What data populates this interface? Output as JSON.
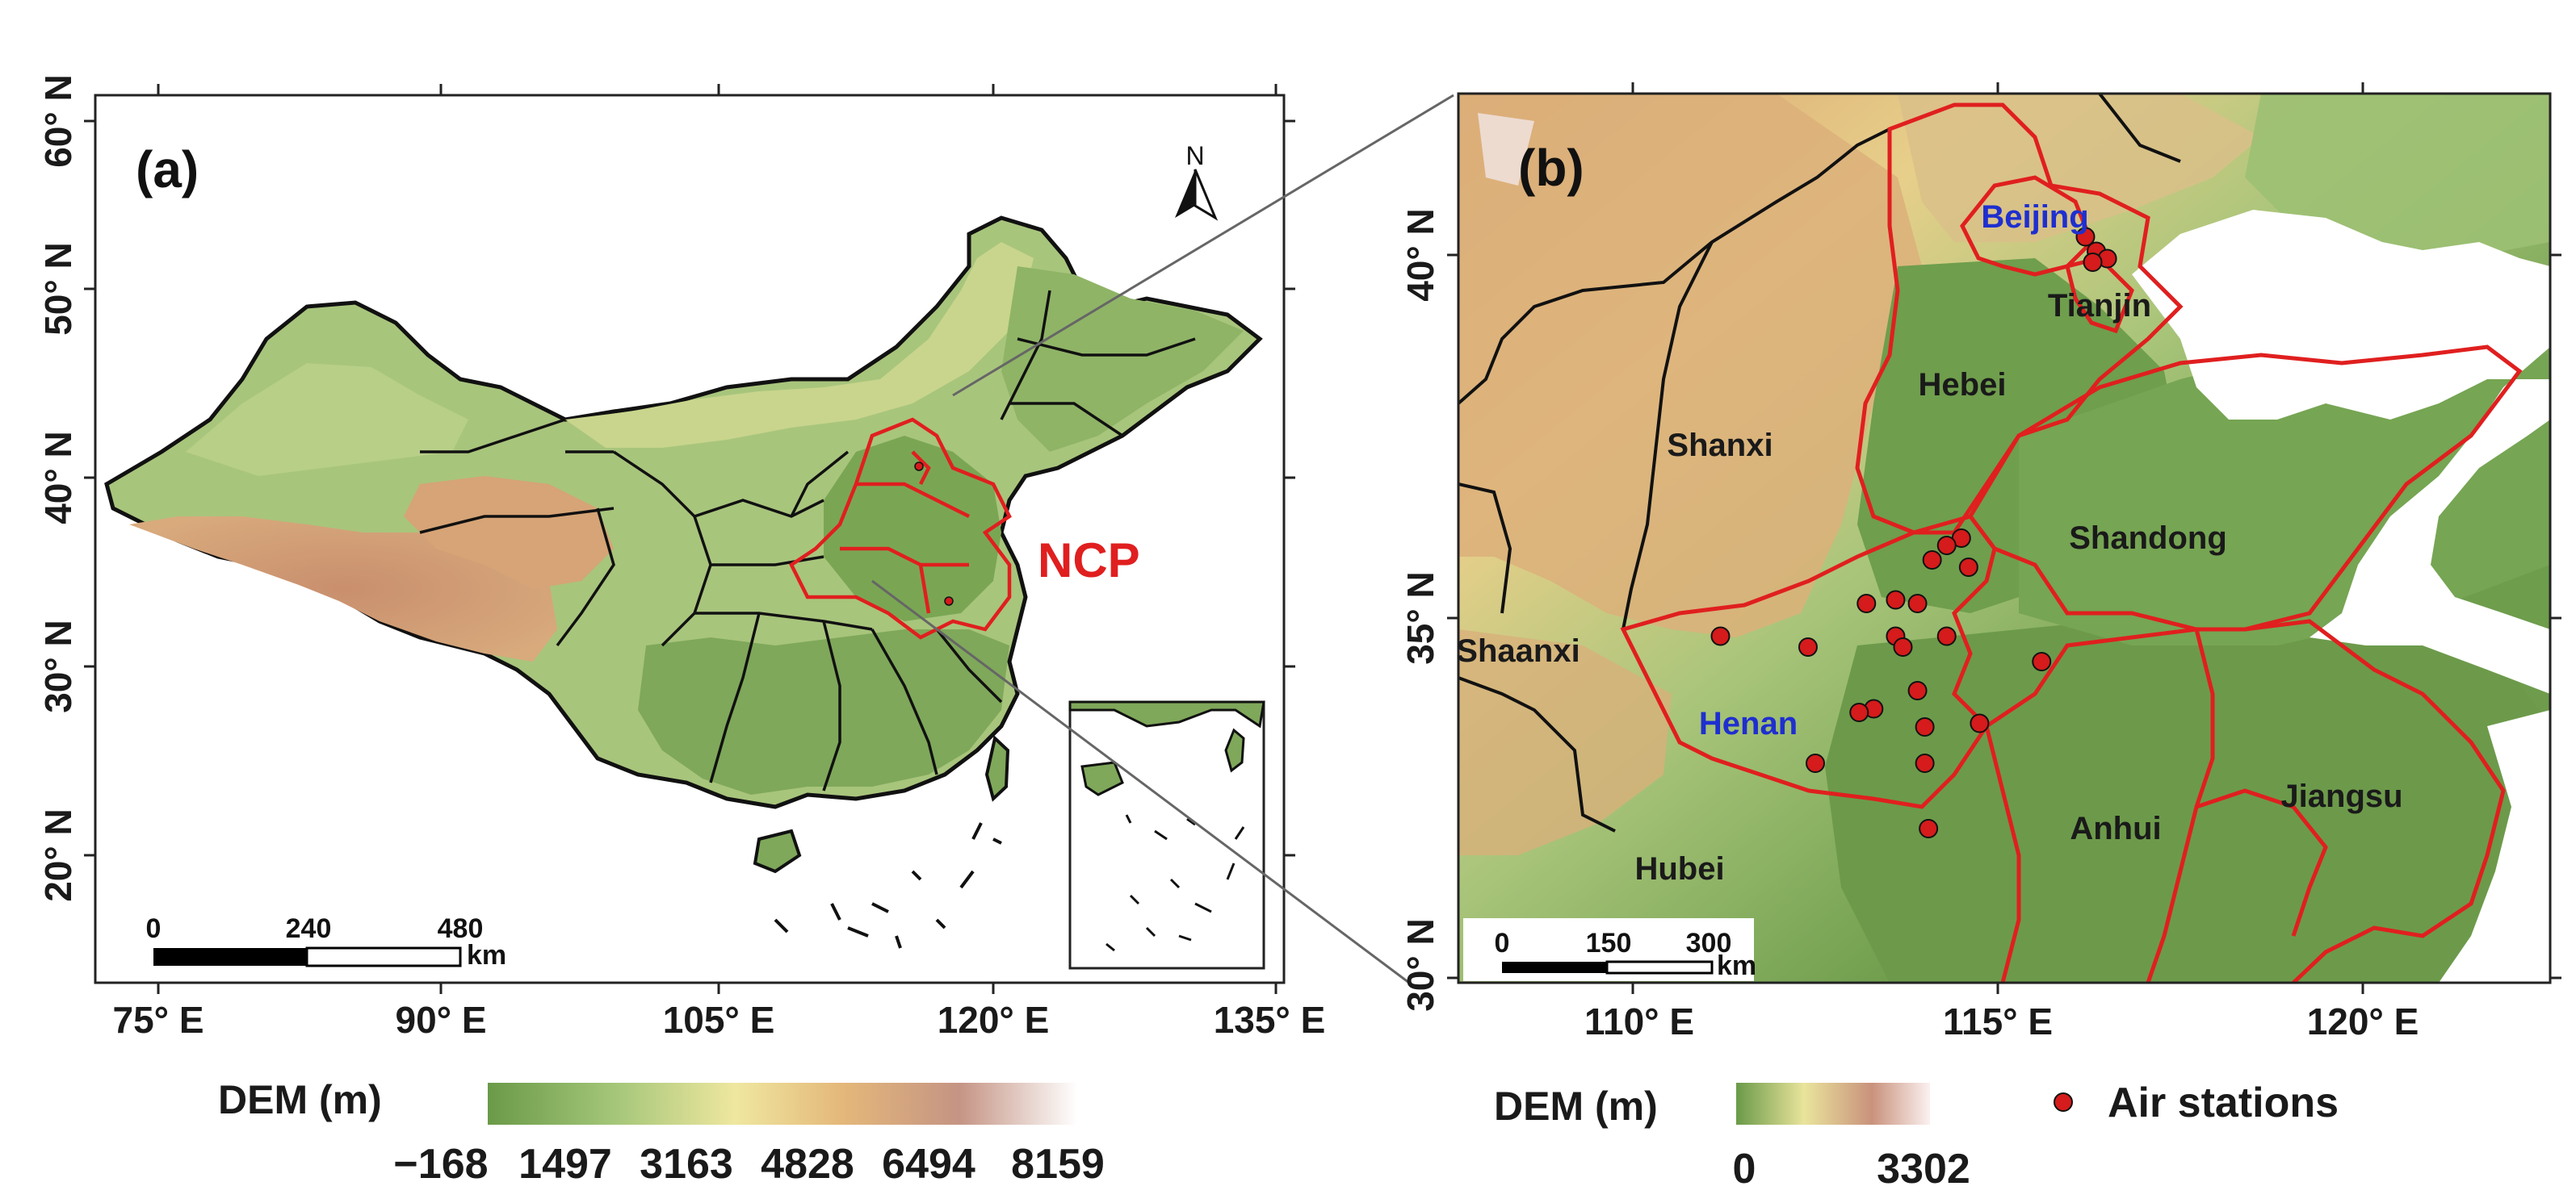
{
  "panel_a": {
    "label": "(a)",
    "region_label": "NCP",
    "north_label": "N",
    "lat_ticks": [
      "60° N",
      "50° N",
      "40° N",
      "30° N",
      "20° N"
    ],
    "lon_ticks": [
      "75° E",
      "90° E",
      "105° E",
      "120° E",
      "135° E"
    ],
    "scalebar": {
      "labels": [
        "0",
        "240",
        "480"
      ],
      "unit": "km"
    },
    "colorbar": {
      "title": "DEM (m)",
      "labels": [
        "−168",
        "1497",
        "3163",
        "4828",
        "6494",
        "8159"
      ]
    }
  },
  "panel_b": {
    "label": "(b)",
    "lat_ticks": [
      "40° N",
      "35° N",
      "30° N"
    ],
    "lon_ticks": [
      "110° E",
      "115° E",
      "120° E"
    ],
    "provinces": {
      "beijing": "Beijing",
      "tianjin": "Tianjin",
      "hebei": "Hebei",
      "shanxi": "Shanxi",
      "shandong": "Shandong",
      "shaanxi": "Shaanxi",
      "henan": "Henan",
      "hubei": "Hubei",
      "anhui": "Anhui",
      "jiangsu": "Jiangsu"
    },
    "scalebar": {
      "labels": [
        "0",
        "150",
        "300"
      ],
      "unit": "km"
    },
    "colorbar": {
      "title": "DEM (m)",
      "labels": [
        "0",
        "3302"
      ]
    },
    "legend": {
      "label": "Air stations"
    },
    "stations": [
      [
        116.2,
        40.25
      ],
      [
        116.35,
        40.05
      ],
      [
        116.5,
        39.95
      ],
      [
        116.3,
        39.9
      ],
      [
        114.5,
        36.1
      ],
      [
        114.3,
        36.0
      ],
      [
        114.1,
        35.8
      ],
      [
        114.6,
        35.7
      ],
      [
        113.2,
        35.2
      ],
      [
        113.6,
        35.25
      ],
      [
        113.9,
        35.2
      ],
      [
        113.6,
        34.75
      ],
      [
        113.7,
        34.6
      ],
      [
        114.3,
        34.75
      ],
      [
        112.4,
        34.6
      ],
      [
        111.2,
        34.75
      ],
      [
        115.6,
        34.4
      ],
      [
        113.9,
        34.0
      ],
      [
        113.3,
        33.75
      ],
      [
        113.1,
        33.7
      ],
      [
        114.0,
        33.5
      ],
      [
        114.75,
        33.55
      ],
      [
        112.5,
        33.0
      ],
      [
        114.0,
        33.0
      ],
      [
        114.05,
        32.1
      ]
    ],
    "colors": {
      "boundary_red": "#e01f1f",
      "station_fill": "#d51b1b",
      "label_blue": "#1f2fcf"
    }
  }
}
